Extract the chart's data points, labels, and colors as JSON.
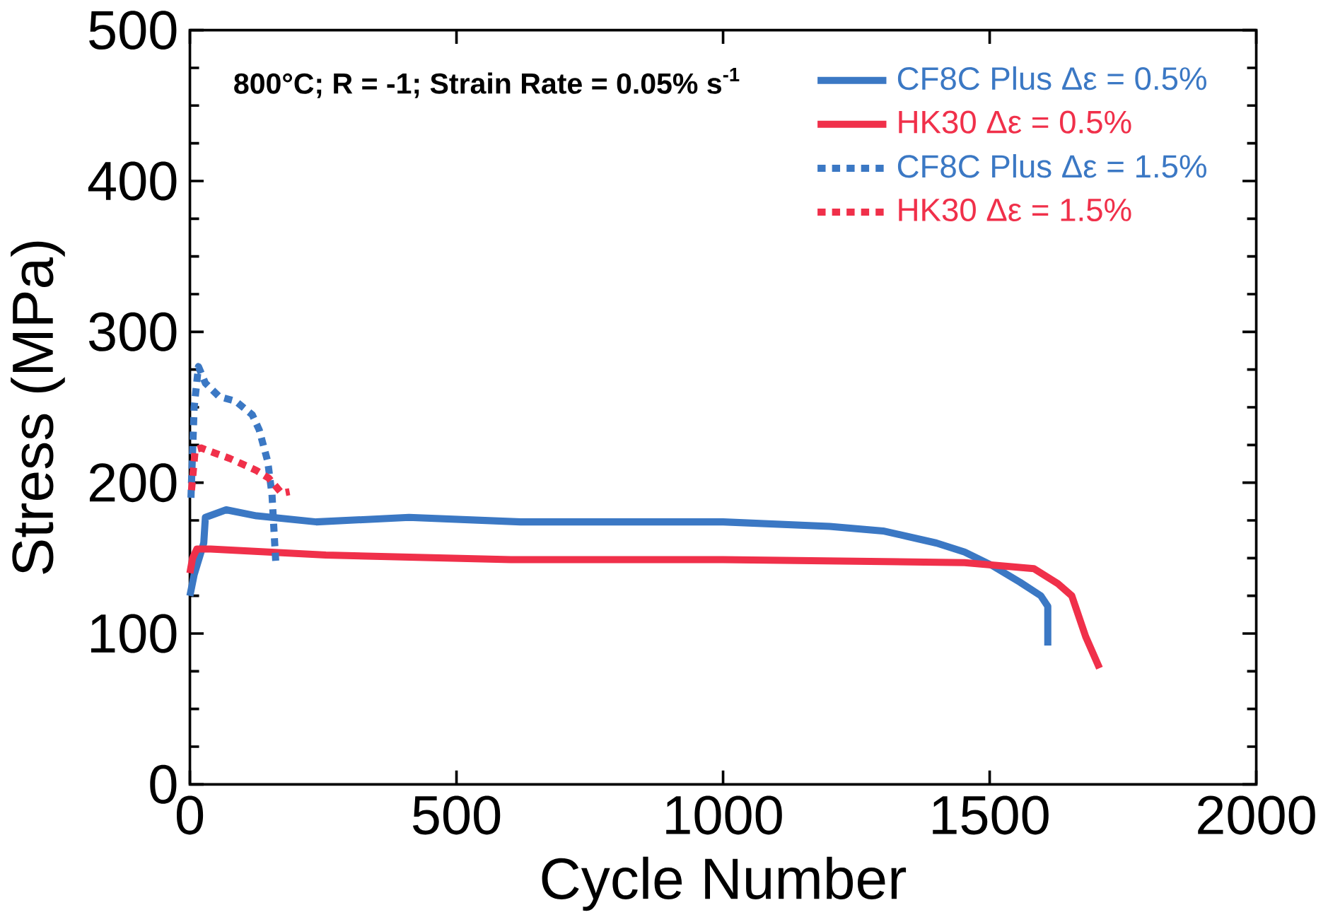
{
  "chart_data": {
    "type": "line",
    "xlabel": "Cycle Number",
    "ylabel": "Stress (MPa)",
    "xlim": [
      0,
      2000
    ],
    "ylim": [
      0,
      500
    ],
    "xticks": [
      0,
      500,
      1000,
      1500,
      2000
    ],
    "yticks": [
      0,
      100,
      200,
      300,
      400,
      500
    ],
    "legend": "top right",
    "annotations": [
      "800°C; R = -1; Strain Rate = 0.05% s$^{-1}$"
    ],
    "series": [
      {
        "name": "CF8C Plus Δε = 0.5%",
        "color": "#3b78c4",
        "line_style": "solid",
        "x": [
          0,
          8,
          26,
          29,
          68,
          125,
          237,
          411,
          620,
          1000,
          1200,
          1300,
          1400,
          1453,
          1505,
          1557,
          1596,
          1609,
          1609
        ],
        "values": [
          125,
          139,
          160,
          177,
          182,
          178,
          174,
          177,
          174,
          174,
          171,
          168,
          160,
          154,
          145,
          134,
          125,
          118,
          92
        ]
      },
      {
        "name": "HK30 Δε = 0.5%",
        "color": "#f0304a",
        "line_style": "solid",
        "x": [
          0,
          5,
          13,
          39,
          255,
          602,
          1000,
          1453,
          1583,
          1628,
          1654,
          1680,
          1706
        ],
        "values": [
          140,
          150,
          156,
          156,
          152,
          149,
          149,
          147,
          143,
          133,
          125,
          98,
          77
        ]
      },
      {
        "name": "CF8C Plus Δε = 1.5%",
        "color": "#3b78c4",
        "line_style": "dotted",
        "x": [
          2,
          8,
          16,
          29,
          55,
          86,
          117,
          130,
          146,
          154,
          159,
          161
        ],
        "values": [
          190,
          250,
          277,
          266,
          257,
          254,
          245,
          235,
          214,
          192,
          160,
          148
        ]
      },
      {
        "name": "HK30 Δε = 1.5%",
        "color": "#f0304a",
        "line_style": "dotted",
        "x": [
          3,
          10,
          21,
          44,
          75,
          94,
          107,
          125,
          148,
          172,
          187
        ],
        "values": [
          195,
          222,
          223,
          220,
          216,
          213,
          211,
          208,
          203,
          193,
          194
        ]
      }
    ]
  }
}
